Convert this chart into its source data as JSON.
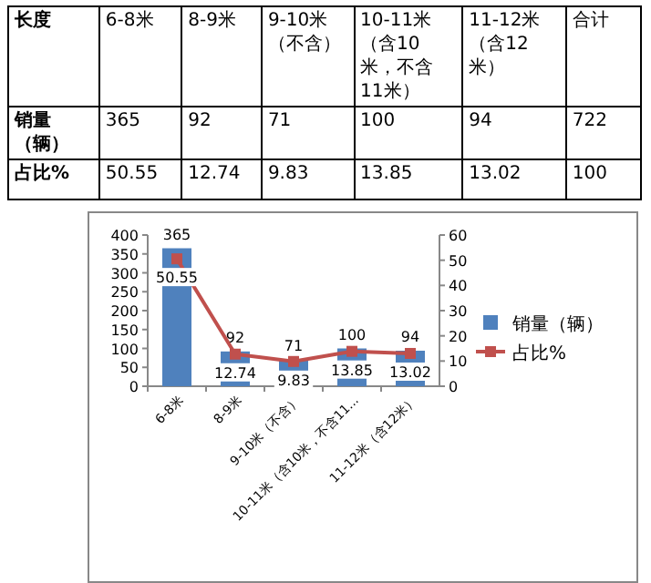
{
  "chart_data": [
    {
      "type": "other",
      "annotations": [
        "长度",
        "6-8米",
        "8-9米",
        "9-10米（不含）",
        "10-11米（含10米，不含11米）",
        "11-12米（含12米）",
        "合计",
        "销量（辆）",
        "365",
        "92",
        "71",
        "100",
        "94",
        "722",
        "占比%",
        "50.55",
        "12.74",
        "9.83",
        "13.85",
        "13.02",
        "100"
      ]
    },
    {
      "type": "bar",
      "categories": [
        "6-8米",
        "8-9米",
        "9-10米（不含）",
        "10-11米（含10米，不含11...",
        "11-12米（含12米）"
      ],
      "series": [
        {
          "name": "销量（辆）",
          "color": "#4f81bd",
          "values": [
            365,
            92,
            71,
            100,
            94
          ]
        },
        {
          "name": "占比%",
          "type": "line",
          "axis": "y2",
          "color": "#c0504d",
          "values": [
            50.55,
            12.74,
            9.83,
            13.85,
            13.02
          ]
        }
      ],
      "ylim": [
        0,
        400
      ],
      "yticks": [
        0,
        50,
        100,
        150,
        200,
        250,
        300,
        350,
        400
      ],
      "y2lim": [
        0,
        60
      ],
      "y2ticks": [
        0,
        10,
        20,
        30,
        40,
        50,
        60
      ],
      "marker": "square",
      "data_labels": true,
      "legend": "right"
    }
  ]
}
